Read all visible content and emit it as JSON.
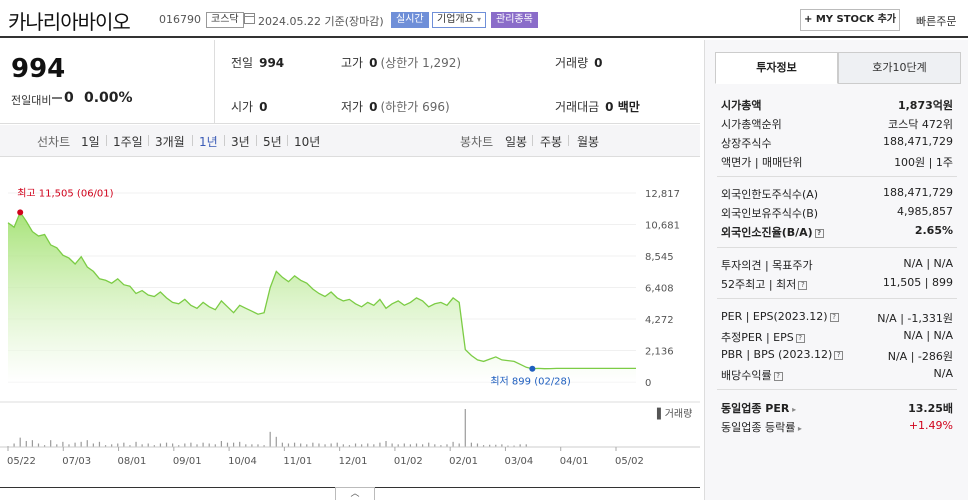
{
  "header": {
    "name": "카나리아바이오",
    "code": "016790",
    "market": "코스닥",
    "date": "2024.05.22",
    "basis": "기준(장마감)",
    "realtime": "실시간",
    "company_info": "기업개요",
    "managed": "관리종목",
    "mystock": "+ MY STOCK 추가",
    "quick_order": "빠른주문"
  },
  "summary": {
    "price": "994",
    "change_label": "전일대비",
    "change_value": "0",
    "change_pct": "0.00%",
    "prev_label": "전일",
    "prev_value": "994",
    "high_label": "고가",
    "high_value": "0",
    "high_limit": "(상한가 1,292)",
    "volume_label": "거래량",
    "volume_value": "0",
    "open_label": "시가",
    "open_value": "0",
    "low_label": "저가",
    "low_value": "0",
    "low_limit": "(하한가 696)",
    "amount_label": "거래대금",
    "amount_value": "0 백만"
  },
  "period": {
    "label": "선차트",
    "options": [
      "1일",
      "1주일",
      "3개월",
      "1년",
      "3년",
      "5년",
      "10년"
    ],
    "selected": "1년",
    "candle_label": "봉차트",
    "candle_options": [
      "일봉",
      "주봉",
      "월봉"
    ]
  },
  "chart_data": {
    "type": "area",
    "yticks": [
      "12,817",
      "10,681",
      "8,545",
      "6,408",
      "4,272",
      "2,136",
      "0"
    ],
    "ylim": [
      0,
      12817
    ],
    "xticks": [
      "05/22",
      "07/03",
      "08/01",
      "09/01",
      "10/04",
      "11/01",
      "12/01",
      "01/02",
      "02/01",
      "03/04",
      "04/01",
      "05/02"
    ],
    "max_label": "최고 11,505 (06/01)",
    "min_label": "최저 899 (02/28)",
    "volume_label": "거래량",
    "series": [
      {
        "values": [
          10800,
          10500,
          11505,
          10900,
          10200,
          9900,
          10000,
          9300,
          9100,
          8600,
          8400,
          8000,
          8500,
          7800,
          7500,
          7000,
          6900,
          6700,
          7000,
          6600,
          6500,
          6000,
          6200,
          5900,
          5800,
          6100,
          5700,
          5400,
          5300,
          5600,
          5200,
          5000,
          5400,
          5100,
          4900,
          5500,
          5100,
          4700,
          5200,
          5000,
          4800,
          4600,
          4700,
          6400,
          7500,
          7100,
          6800,
          7200,
          6900,
          6700,
          6300,
          6000,
          5800,
          6100,
          5700,
          5500,
          5600,
          5300,
          5100,
          5400,
          5200,
          5600,
          5000,
          5300,
          5500,
          5200,
          5400,
          5700,
          5500,
          5100,
          5300,
          5400,
          5200,
          5700,
          5400,
          2200,
          1800,
          1500,
          1400,
          1550,
          1700,
          1500,
          1450,
          1400,
          1200,
          1000,
          899,
          920,
          900,
          910,
          920,
          920,
          920,
          920,
          920,
          920,
          920,
          920,
          920,
          920,
          920,
          920,
          920,
          920
        ]
      }
    ]
  },
  "panel": {
    "tab_active": "투자정보",
    "tab_other": "호가10단계",
    "g1": [
      {
        "k": "시가총액",
        "v": "1,873억원",
        "bold": true
      },
      {
        "k": "시가총액순위",
        "v": "코스닥 472위"
      },
      {
        "k": "상장주식수",
        "v": "188,471,729"
      },
      {
        "k": "액면가 | 매매단위",
        "v": "100원 | 1주"
      }
    ],
    "g2": [
      {
        "k": "외국인한도주식수(A)",
        "v": "188,471,729"
      },
      {
        "k": "외국인보유주식수(B)",
        "v": "4,985,857"
      },
      {
        "k": "외국인소진율(B/A)",
        "v": "2.65%",
        "bold": true
      }
    ],
    "g3": [
      {
        "k": "투자의견 | 목표주가",
        "v": "N/A | N/A"
      },
      {
        "k": "52주최고 | 최저",
        "v": "11,505 | 899"
      }
    ],
    "g4": [
      {
        "k": "PER | EPS(2023.12)",
        "v": "N/A | -1,331원"
      },
      {
        "k": "추정PER | EPS",
        "v": "N/A | N/A"
      },
      {
        "k": "PBR | BPS (2023.12)",
        "v": "N/A | -286원"
      },
      {
        "k": "배당수익률",
        "v": "N/A"
      }
    ],
    "g5": [
      {
        "k": "동일업종 PER",
        "v": "13.25배",
        "bold": true
      },
      {
        "k": "동일업종 등락률",
        "v": "+1.49%",
        "red": true
      }
    ]
  },
  "colors": {
    "accent": "#3a5bb6",
    "area": "#8fdc5c",
    "managed": "#8a6cc9"
  }
}
